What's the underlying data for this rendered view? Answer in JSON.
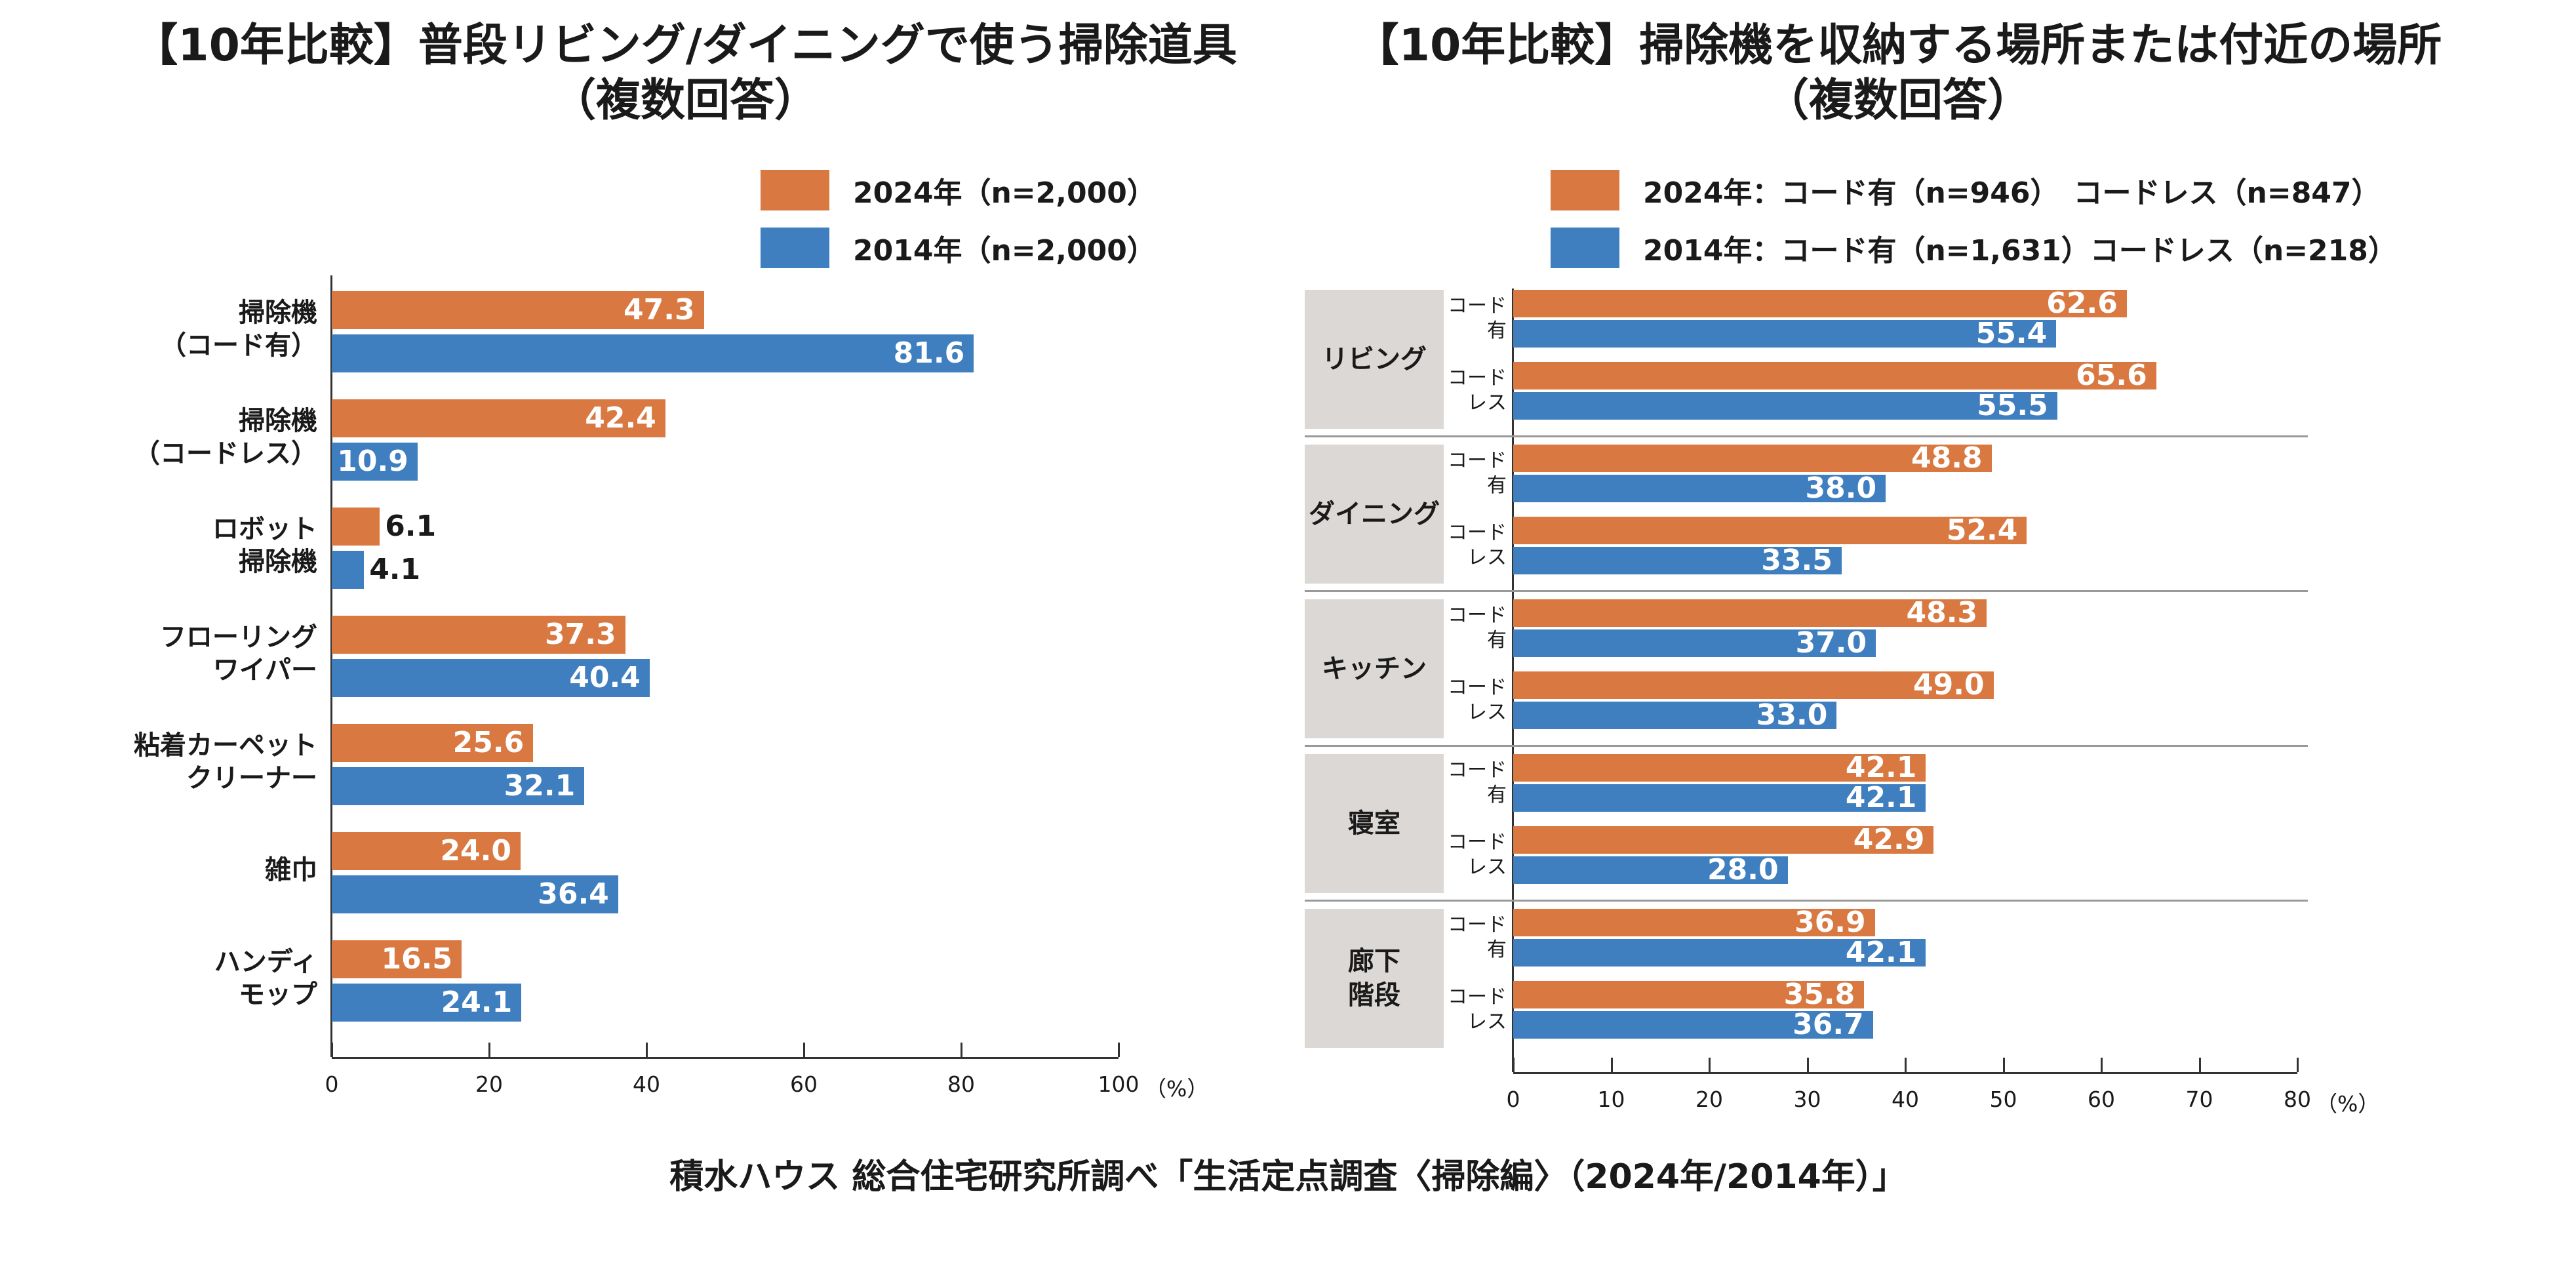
{
  "colors": {
    "2024": "#d97941",
    "2014": "#3f7ebf"
  },
  "source": "積水ハウス 総合住宅研究所調べ「生活定点調査〈掃除編〉（2024年/2014年）」",
  "chart_data": [
    {
      "type": "bar",
      "title": "【10年比較】普段リビング/ダイニングで使う掃除道具\n（複数回答）",
      "legend": [
        "2024年（n=2,000）",
        "2014年（n=2,000）"
      ],
      "xlim": [
        0,
        100
      ],
      "xticks": [
        "0",
        "20",
        "40",
        "60",
        "80",
        "100"
      ],
      "unit": "（%）",
      "categories": [
        "掃除機\n（コード有）",
        "掃除機\n（コードレス）",
        "ロボット\n掃除機",
        "フローリング\nワイパー",
        "粘着カーペット\nクリーナー",
        "雑巾",
        "ハンディ\nモップ"
      ],
      "series": [
        {
          "name": "2024年（n=2,000）",
          "values": [
            47.3,
            42.4,
            6.1,
            37.3,
            25.6,
            24.0,
            16.5
          ]
        },
        {
          "name": "2014年（n=2,000）",
          "values": [
            81.6,
            10.9,
            4.1,
            40.4,
            32.1,
            36.4,
            24.1
          ]
        }
      ]
    },
    {
      "type": "bar",
      "title": "【10年比較】掃除機を収納する場所または付近の場所\n（複数回答）",
      "legend": [
        "2024年：コード有（n=946）　コードレス（n=847）",
        "2014年：コード有（n=1,631）コードレス（n=218）"
      ],
      "xlim": [
        0,
        80
      ],
      "xticks": [
        "0",
        "10",
        "20",
        "30",
        "40",
        "50",
        "60",
        "70",
        "80"
      ],
      "unit": "（%）",
      "groups": [
        {
          "label": "リビング",
          "sub": [
            {
              "label": "コード\n有",
              "v2024": 62.6,
              "v2014": 55.4
            },
            {
              "label": "コード\nレス",
              "v2024": 65.6,
              "v2014": 55.5
            }
          ]
        },
        {
          "label": "ダイニング",
          "sub": [
            {
              "label": "コード\n有",
              "v2024": 48.8,
              "v2014": 38.0
            },
            {
              "label": "コード\nレス",
              "v2024": 52.4,
              "v2014": 33.5
            }
          ]
        },
        {
          "label": "キッチン",
          "sub": [
            {
              "label": "コード\n有",
              "v2024": 48.3,
              "v2014": 37.0
            },
            {
              "label": "コード\nレス",
              "v2024": 49.0,
              "v2014": 33.0
            }
          ]
        },
        {
          "label": "寝室",
          "sub": [
            {
              "label": "コード\n有",
              "v2024": 42.1,
              "v2014": 42.1
            },
            {
              "label": "コード\nレス",
              "v2024": 42.9,
              "v2014": 28.0
            }
          ]
        },
        {
          "label": "廊下\n階段",
          "sub": [
            {
              "label": "コード\n有",
              "v2024": 36.9,
              "v2014": 42.1
            },
            {
              "label": "コード\nレス",
              "v2024": 35.8,
              "v2014": 36.7
            }
          ]
        }
      ]
    }
  ]
}
